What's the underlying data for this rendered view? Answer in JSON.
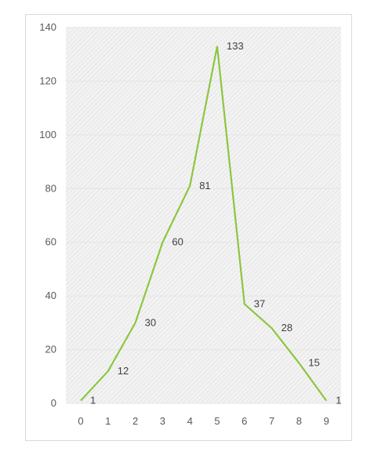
{
  "chart_data": {
    "type": "line",
    "title": "",
    "xlabel": "",
    "ylabel": "",
    "x": [
      0,
      1,
      2,
      3,
      4,
      5,
      6,
      7,
      8,
      9
    ],
    "series": [
      {
        "values": [
          1,
          12,
          30,
          60,
          81,
          133,
          37,
          28,
          15,
          1
        ],
        "color": "#8dc63f"
      }
    ],
    "data_labels": [
      "1",
      "12",
      "30",
      "60",
      "81",
      "133",
      "37",
      "28",
      "15",
      "1"
    ],
    "ylim": [
      0,
      140
    ],
    "yticks": [
      0,
      20,
      40,
      60,
      80,
      100,
      120,
      140
    ],
    "xticks": [
      "0",
      "1",
      "2",
      "3",
      "4",
      "5",
      "6",
      "7",
      "8",
      "9"
    ],
    "grid": true,
    "legend": "none",
    "plot_background": "hatched light gray"
  }
}
